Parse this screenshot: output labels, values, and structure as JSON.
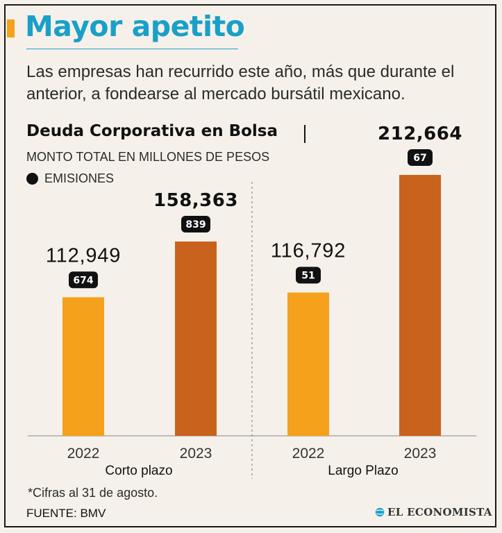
{
  "header": {
    "title": "Mayor apetito",
    "subtitle": "Las empresas han recurrido este año, más que durante el anterior, a fondearse al mercado bursátil mexicano."
  },
  "chart_data": {
    "type": "bar",
    "title": "Deuda Corporativa en Bolsa",
    "subtitle": "MONTO TOTAL EN MILLONES DE PESOS",
    "legend": "EMISIONES",
    "groups": [
      "Corto plazo",
      "Largo Plazo"
    ],
    "categories": [
      "2022",
      "2023",
      "2022",
      "2023"
    ],
    "group_of": [
      0,
      0,
      1,
      1
    ],
    "values": [
      112949,
      158363,
      116792,
      212664
    ],
    "value_labels": [
      "112,949",
      "158,363",
      "116,792",
      "212,664"
    ],
    "emisiones": [
      "674",
      "839",
      "51",
      "67"
    ],
    "highlight": [
      false,
      true,
      false,
      true
    ],
    "colors": [
      "#f5a11c",
      "#c9621c",
      "#f5a11c",
      "#c9621c"
    ],
    "ylim": [
      0,
      250000
    ]
  },
  "footer": {
    "note": "*Cifras al 31 de agosto.",
    "source": "FUENTE: BMV",
    "brand": "EL ECONOMISTA"
  }
}
